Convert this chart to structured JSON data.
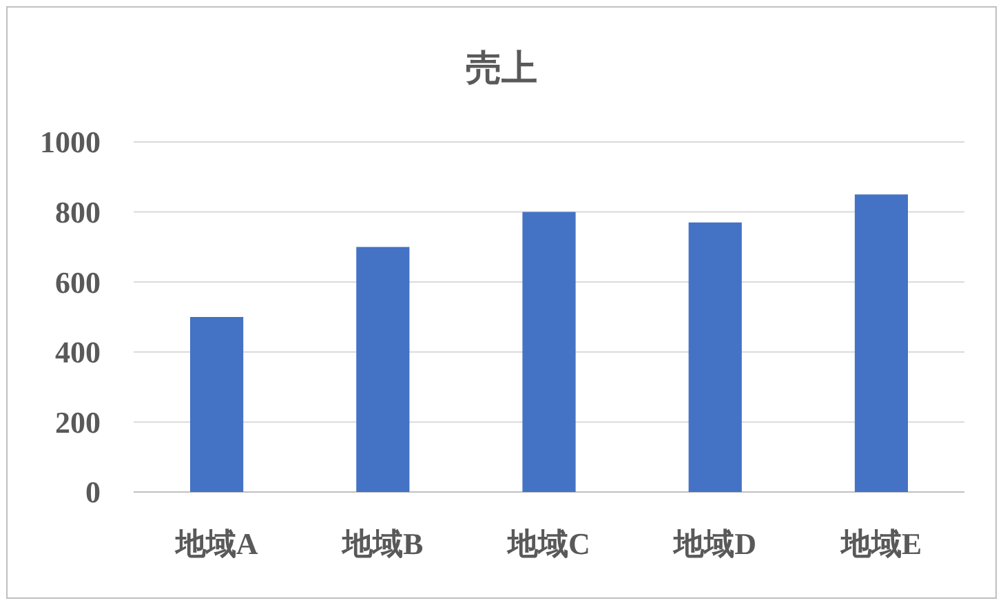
{
  "chart_data": {
    "type": "bar",
    "title": "売上",
    "categories": [
      "地域A",
      "地域B",
      "地域C",
      "地域D",
      "地域E"
    ],
    "values": [
      500,
      700,
      800,
      770,
      850
    ],
    "color": "#4472c4",
    "ylim": [
      0,
      1000
    ],
    "yticks": [
      0,
      200,
      400,
      600,
      800,
      1000
    ],
    "grid": "y"
  }
}
